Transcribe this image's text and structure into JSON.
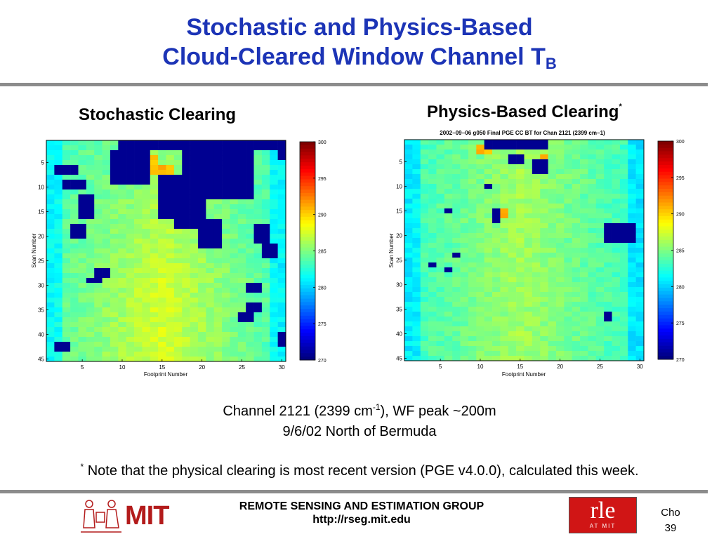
{
  "slide": {
    "title_line1": "Stochastic and Physics-Based",
    "title_line2": "Cloud-Cleared Window Channel T",
    "title_sub": "B"
  },
  "left_panel": {
    "heading": "Stochastic Clearing"
  },
  "right_panel": {
    "heading": "Physics-Based Clearing",
    "heading_mark": "*",
    "plot_title": "2002−09−06 g050 Final PGE CC BT for Chan 2121 (2399 cm−1)"
  },
  "caption": {
    "line1_a": "Channel 2121 (2399 cm",
    "line1_sup": "-1",
    "line1_b": "), WF peak ~200m",
    "line2": "9/6/02 North of Bermuda"
  },
  "note": {
    "mark": "*",
    "text": " Note that the physical clearing is most recent version (PGE v4.0.0), calculated this week."
  },
  "footer": {
    "group": "REMOTE SENSING AND ESTIMATION GROUP",
    "url": "http://rseg.mit.edu",
    "mit_logo": "MIT",
    "rle_logo_big": "rle",
    "rle_logo_small": "AT MIT",
    "author": "Cho",
    "page_number": "39"
  },
  "colors": {
    "title": "#1c34b6",
    "rule": "#8c8c8c",
    "mit_red": "#b31b1b",
    "rle_red": "#d01515"
  },
  "chart_data": [
    {
      "type": "heatmap",
      "panel": "stochastic",
      "title": "",
      "xlabel": "Footprint Number",
      "ylabel": "Scan Number",
      "x_ticks": [
        5,
        10,
        15,
        20,
        25,
        30
      ],
      "y_ticks": [
        5,
        10,
        15,
        20,
        25,
        30,
        35,
        40,
        45
      ],
      "xlim": [
        0.5,
        30.5
      ],
      "ylim": [
        0.5,
        45.5
      ],
      "colorbar": {
        "range": [
          270,
          300
        ],
        "ticks": [
          300,
          295,
          290,
          285,
          280,
          275,
          270
        ]
      },
      "clouds": [
        {
          "x": [
            10,
            29
          ],
          "y": [
            1,
            2
          ]
        },
        {
          "x": [
            9,
            13
          ],
          "y": [
            3,
            9
          ]
        },
        {
          "x": [
            18,
            26
          ],
          "y": [
            3,
            12
          ]
        },
        {
          "x": [
            15,
            17
          ],
          "y": [
            8,
            16
          ]
        },
        {
          "x": [
            17,
            20
          ],
          "y": [
            13,
            18
          ]
        },
        {
          "x": [
            20,
            22
          ],
          "y": [
            17,
            22
          ]
        },
        {
          "x": [
            2,
            4
          ],
          "y": [
            6,
            7
          ]
        },
        {
          "x": [
            3,
            5
          ],
          "y": [
            9,
            10
          ]
        },
        {
          "x": [
            5,
            6
          ],
          "y": [
            12,
            16
          ]
        },
        {
          "x": [
            4,
            5
          ],
          "y": [
            18,
            20
          ]
        },
        {
          "x": [
            27,
            28
          ],
          "y": [
            18,
            21
          ]
        },
        {
          "x": [
            28,
            29
          ],
          "y": [
            22,
            24
          ]
        },
        {
          "x": [
            7,
            8
          ],
          "y": [
            27,
            28
          ]
        },
        {
          "x": [
            6,
            7
          ],
          "y": [
            29,
            29
          ]
        },
        {
          "x": [
            26,
            27
          ],
          "y": [
            30,
            31
          ]
        },
        {
          "x": [
            26,
            27
          ],
          "y": [
            34,
            35
          ]
        },
        {
          "x": [
            25,
            26
          ],
          "y": [
            36,
            37
          ]
        },
        {
          "x": [
            2,
            3
          ],
          "y": [
            42,
            43
          ]
        },
        {
          "x": [
            30,
            30
          ],
          "y": [
            1,
            4
          ]
        },
        {
          "x": [
            30,
            30
          ],
          "y": [
            40,
            42
          ]
        }
      ],
      "warm_boxes": [
        {
          "x": [
            12,
            14
          ],
          "y": [
            4,
            5
          ]
        },
        {
          "x": [
            13,
            16
          ],
          "y": [
            6,
            7
          ]
        }
      ]
    },
    {
      "type": "heatmap",
      "panel": "physics",
      "title": "2002−09−06 g050 Final PGE CC BT for Chan 2121 (2399 cm−1)",
      "xlabel": "Footprint Number",
      "ylabel": "Scan Number",
      "x_ticks": [
        5,
        10,
        15,
        20,
        25,
        30
      ],
      "y_ticks": [
        5,
        10,
        15,
        20,
        25,
        30,
        35,
        40,
        45
      ],
      "xlim": [
        0.5,
        30.5
      ],
      "ylim": [
        0.5,
        45.5
      ],
      "colorbar": {
        "range": [
          270,
          300
        ],
        "ticks": [
          300,
          295,
          290,
          285,
          280,
          275,
          270
        ]
      },
      "clouds": [
        {
          "x": [
            11,
            14
          ],
          "y": [
            1,
            2
          ]
        },
        {
          "x": [
            15,
            18
          ],
          "y": [
            1,
            2
          ]
        },
        {
          "x": [
            17,
            18
          ],
          "y": [
            5,
            7
          ]
        },
        {
          "x": [
            14,
            15
          ],
          "y": [
            4,
            5
          ]
        },
        {
          "x": [
            11,
            11
          ],
          "y": [
            10,
            10
          ]
        },
        {
          "x": [
            12,
            12
          ],
          "y": [
            15,
            17
          ]
        },
        {
          "x": [
            6,
            6
          ],
          "y": [
            15,
            15
          ]
        },
        {
          "x": [
            4,
            4
          ],
          "y": [
            26,
            26
          ]
        },
        {
          "x": [
            7,
            7
          ],
          "y": [
            24,
            24
          ]
        },
        {
          "x": [
            6,
            6
          ],
          "y": [
            27,
            27
          ]
        },
        {
          "x": [
            26,
            29
          ],
          "y": [
            18,
            21
          ]
        },
        {
          "x": [
            26,
            26
          ],
          "y": [
            36,
            37
          ]
        }
      ],
      "warm_boxes": [
        {
          "x": [
            10,
            11
          ],
          "y": [
            2,
            3
          ]
        },
        {
          "x": [
            13,
            13
          ],
          "y": [
            15,
            16
          ]
        },
        {
          "x": [
            17,
            17
          ],
          "y": [
            5,
            5
          ]
        },
        {
          "x": [
            18,
            18
          ],
          "y": [
            4,
            4
          ]
        }
      ]
    }
  ]
}
